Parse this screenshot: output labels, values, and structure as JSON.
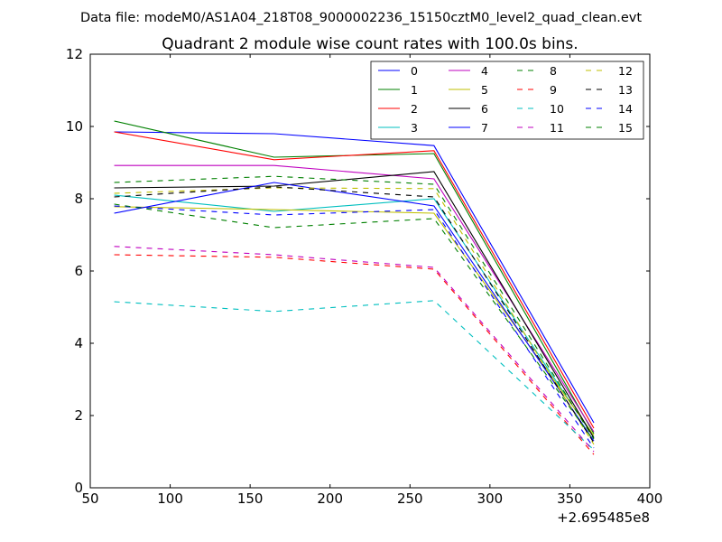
{
  "figure": {
    "suptitle": "Data file: modeM0/AS1A04_218T08_9000002236_15150cztM0_level2_quad_clean.evt",
    "offset_label": "+2.695485e8"
  },
  "chart_data": {
    "type": "line",
    "title": "Quadrant 2 module wise count rates with 100.0s bins.",
    "xlabel": "",
    "ylabel": "",
    "x_offset": "+2.695485e8",
    "xlim": [
      50,
      400
    ],
    "ylim": [
      0,
      12
    ],
    "xticks": [
      "50",
      "100",
      "150",
      "200",
      "250",
      "300",
      "350",
      "400"
    ],
    "yticks": [
      "0",
      "2",
      "4",
      "6",
      "8",
      "10",
      "12"
    ],
    "grid": false,
    "legend_position": "top-right",
    "x": [
      65,
      165,
      265,
      365
    ],
    "series": [
      {
        "name": "0",
        "color": "#0000ff",
        "dash": "solid",
        "values": [
          9.85,
          9.8,
          9.47,
          1.8
        ]
      },
      {
        "name": "1",
        "color": "#008000",
        "dash": "solid",
        "values": [
          10.15,
          9.15,
          9.25,
          1.5
        ]
      },
      {
        "name": "2",
        "color": "#ff0000",
        "dash": "solid",
        "values": [
          9.85,
          9.08,
          9.33,
          1.65
        ]
      },
      {
        "name": "3",
        "color": "#00bfbf",
        "dash": "solid",
        "values": [
          8.1,
          7.65,
          8.0,
          1.4
        ]
      },
      {
        "name": "4",
        "color": "#bf00bf",
        "dash": "solid",
        "values": [
          8.92,
          8.92,
          8.55,
          1.55
        ]
      },
      {
        "name": "5",
        "color": "#bfbf00",
        "dash": "solid",
        "values": [
          7.78,
          7.7,
          7.6,
          1.45
        ]
      },
      {
        "name": "6",
        "color": "#000000",
        "dash": "solid",
        "values": [
          8.3,
          8.35,
          8.75,
          1.38
        ]
      },
      {
        "name": "7",
        "color": "#0000ff",
        "dash": "solid",
        "values": [
          7.6,
          8.45,
          7.8,
          1.3
        ]
      },
      {
        "name": "8",
        "color": "#008000",
        "dash": "dashed",
        "values": [
          8.45,
          8.62,
          8.4,
          1.35
        ]
      },
      {
        "name": "9",
        "color": "#ff0000",
        "dash": "dashed",
        "values": [
          6.45,
          6.38,
          6.05,
          0.92
        ]
      },
      {
        "name": "10",
        "color": "#00bfbf",
        "dash": "dashed",
        "values": [
          5.15,
          4.88,
          5.18,
          1.05
        ]
      },
      {
        "name": "11",
        "color": "#bf00bf",
        "dash": "dashed",
        "values": [
          6.68,
          6.45,
          6.1,
          1.0
        ]
      },
      {
        "name": "12",
        "color": "#bfbf00",
        "dash": "dashed",
        "values": [
          8.15,
          8.3,
          8.28,
          1.2
        ]
      },
      {
        "name": "13",
        "color": "#000000",
        "dash": "dashed",
        "values": [
          8.05,
          8.33,
          8.05,
          1.25
        ]
      },
      {
        "name": "14",
        "color": "#0000ff",
        "dash": "dashed",
        "values": [
          7.8,
          7.55,
          7.7,
          1.1
        ]
      },
      {
        "name": "15",
        "color": "#008000",
        "dash": "dashed",
        "values": [
          7.85,
          7.2,
          7.45,
          1.3
        ]
      }
    ]
  }
}
